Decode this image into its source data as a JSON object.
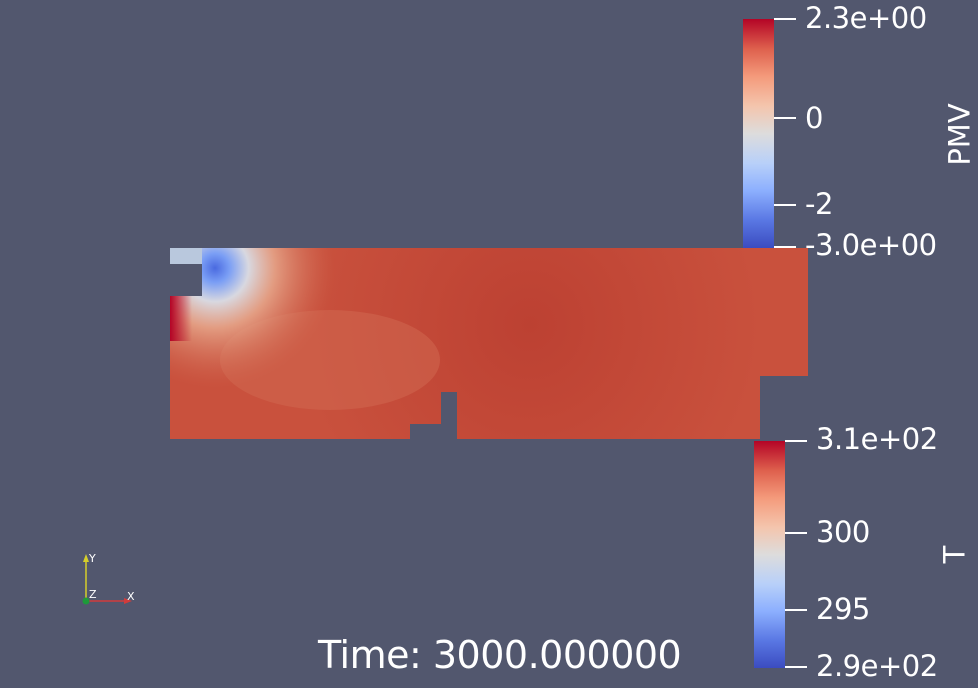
{
  "colors": {
    "background": "#52576e",
    "cool": "#3b4cc0",
    "neutral": "#dddddd",
    "warm": "#b40426",
    "field": "#c44e3a"
  },
  "pmv_bar": {
    "title": "PMV",
    "labels": {
      "max": "2.3e+00",
      "mid": "0",
      "low": "-2",
      "min": "-3.0e+00"
    }
  },
  "t_bar": {
    "title": "T",
    "labels": {
      "max": "3.1e+02",
      "mid": "300",
      "low": "295",
      "min": "2.9e+02"
    }
  },
  "time": {
    "label": "Time: 3000.000000"
  },
  "axes": {
    "x": "X",
    "y": "Y",
    "z": "Z"
  }
}
